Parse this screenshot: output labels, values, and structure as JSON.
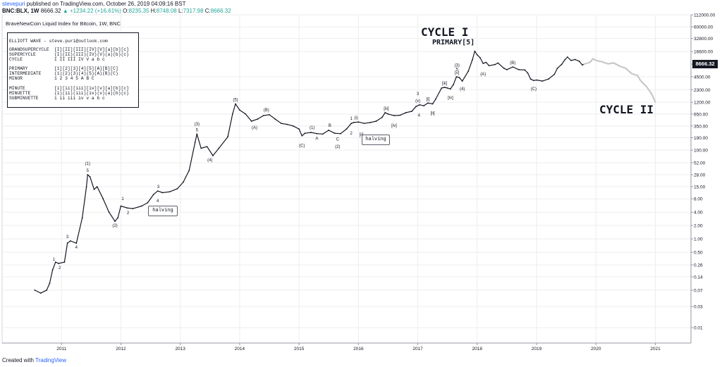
{
  "header": {
    "user": "stevepuri",
    "published": "published on TradingView.com, October 26, 2019 04:09:16 BST",
    "symbol": "BNC:BLX, 1W",
    "last": "8666.32",
    "change": "▲ +1234.22 (+16.61%)",
    "o_label": "O:",
    "o_value": "8235.35",
    "h_label": "H:",
    "h_value": "8748.08",
    "l_label": "L:",
    "l_value": "7317.98",
    "c_label": "C:",
    "c_value": "8666.32"
  },
  "footer": {
    "created_with": "Created with",
    "brand": "TradingView"
  },
  "colors": {
    "candle": "#131722",
    "projection": "#c8c8c8",
    "grid": "#eeeef0",
    "axis": "#9598a1",
    "accent": "#2962ff"
  },
  "legend": {
    "title": "ELLIOTT WAVE - steve.puri@outlook.com",
    "rows": [
      {
        "name": "GRANDSUPERCYCLE",
        "labels": "[I][II][III][IV][V][a][b][c]"
      },
      {
        "name": "SUPERCYCLE",
        "labels": "(I)(II)(III)(IV)(V)(a)(b)(c)"
      },
      {
        "name": "CYCLE",
        "labels": "I  II  III  IV  V  a  b  c"
      },
      {
        "name": "PRIMARY",
        "labels": "[1][2][3][4][5][A][B][C]"
      },
      {
        "name": "INTERMEDIATE",
        "labels": "(1)(2)(3)(4)(5)(A)(B)(C)"
      },
      {
        "name": "MINOR",
        "labels": "1  2  3  4  5  A  B  C"
      },
      {
        "name": "MINUTE",
        "labels": "[i][ii][iii][iv][v][a][b][c]"
      },
      {
        "name": "MINUETTE",
        "labels": "(i)(ii)(iii)(iv)(v)(a)(b)(c)"
      },
      {
        "name": "SUBMINUETTE",
        "labels": "i  ii  iii  iv  v  a  b  c"
      }
    ]
  },
  "annotations": {
    "cycle1": "CYCLE I",
    "primary5": "PRIMARY[5]",
    "cycle2": "CYCLE II",
    "halving1": "halving",
    "halving2": "halving"
  },
  "chart_data": {
    "type": "line",
    "title": "BraveNewCoin Liquid Index for Bitcoin, 1W, BNC",
    "y_scale": "log",
    "ylim": [
      0.0045,
      112000
    ],
    "xlim": [
      2010.0,
      2021.6
    ],
    "y_ticks": [
      "112000.00",
      "60000.00",
      "32800.00",
      "16600.00",
      "8666.32",
      "4500.00",
      "2300.00",
      "1200.00",
      "650.00",
      "350.00",
      "190.00",
      "100.00",
      "52.00",
      "28.00",
      "15.00",
      "8.00",
      "4.00",
      "2.00",
      "1.00",
      "0.50",
      "0.26",
      "0.14",
      "0.07",
      "0.03",
      "0.01"
    ],
    "y_tick_values": [
      112000,
      60000,
      32800,
      16600,
      8666.32,
      4500,
      2300,
      1200,
      650,
      350,
      190,
      100,
      52,
      28,
      15,
      8,
      4,
      2,
      1,
      0.5,
      0.26,
      0.14,
      0.07,
      0.03,
      0.01
    ],
    "x_ticks": [
      "2011",
      "2012",
      "2013",
      "2014",
      "2015",
      "2016",
      "2017",
      "2018",
      "2019",
      "2020",
      "2021"
    ],
    "x_tick_values": [
      2011,
      2012,
      2013,
      2014,
      2015,
      2016,
      2017,
      2018,
      2019,
      2020,
      2021
    ],
    "grid": true,
    "last_price": 8666.32,
    "series": [
      {
        "values": [
          [
            2010.55,
            0.07
          ],
          [
            2010.65,
            0.06
          ],
          [
            2010.75,
            0.07
          ],
          [
            2010.8,
            0.1
          ],
          [
            2010.85,
            0.2
          ],
          [
            2010.9,
            0.3
          ],
          [
            2010.95,
            0.28
          ],
          [
            2011.05,
            0.3
          ],
          [
            2011.1,
            0.8
          ],
          [
            2011.15,
            0.9
          ],
          [
            2011.25,
            0.8
          ],
          [
            2011.35,
            3.0
          ],
          [
            2011.42,
            15
          ],
          [
            2011.44,
            28
          ],
          [
            2011.48,
            25
          ],
          [
            2011.55,
            13
          ],
          [
            2011.6,
            15
          ],
          [
            2011.7,
            8
          ],
          [
            2011.8,
            4
          ],
          [
            2011.9,
            2.5
          ],
          [
            2011.95,
            3.0
          ],
          [
            2012.0,
            5.5
          ],
          [
            2012.1,
            5.0
          ],
          [
            2012.2,
            4.8
          ],
          [
            2012.35,
            5.5
          ],
          [
            2012.45,
            6.5
          ],
          [
            2012.55,
            10
          ],
          [
            2012.62,
            12
          ],
          [
            2012.7,
            11
          ],
          [
            2012.82,
            11.5
          ],
          [
            2012.95,
            13.5
          ],
          [
            2013.05,
            19
          ],
          [
            2013.15,
            35
          ],
          [
            2013.25,
            150
          ],
          [
            2013.28,
            230
          ],
          [
            2013.35,
            110
          ],
          [
            2013.45,
            120
          ],
          [
            2013.55,
            75
          ],
          [
            2013.65,
            110
          ],
          [
            2013.8,
            200
          ],
          [
            2013.88,
            650
          ],
          [
            2013.93,
            1100
          ],
          [
            2014.0,
            800
          ],
          [
            2014.1,
            650
          ],
          [
            2014.2,
            450
          ],
          [
            2014.3,
            500
          ],
          [
            2014.4,
            600
          ],
          [
            2014.5,
            630
          ],
          [
            2014.6,
            500
          ],
          [
            2014.7,
            400
          ],
          [
            2014.8,
            380
          ],
          [
            2014.9,
            350
          ],
          [
            2015.0,
            300
          ],
          [
            2015.05,
            210
          ],
          [
            2015.1,
            240
          ],
          [
            2015.2,
            250
          ],
          [
            2015.3,
            235
          ],
          [
            2015.4,
            230
          ],
          [
            2015.5,
            280
          ],
          [
            2015.6,
            240
          ],
          [
            2015.7,
            235
          ],
          [
            2015.8,
            300
          ],
          [
            2015.88,
            400
          ],
          [
            2015.92,
            420
          ],
          [
            2016.0,
            430
          ],
          [
            2016.1,
            400
          ],
          [
            2016.2,
            420
          ],
          [
            2016.3,
            450
          ],
          [
            2016.4,
            550
          ],
          [
            2016.45,
            700
          ],
          [
            2016.5,
            650
          ],
          [
            2016.6,
            600
          ],
          [
            2016.7,
            610
          ],
          [
            2016.8,
            700
          ],
          [
            2016.9,
            750
          ],
          [
            2016.97,
            960
          ],
          [
            2017.03,
            1050
          ],
          [
            2017.1,
            1000
          ],
          [
            2017.17,
            1150
          ],
          [
            2017.25,
            1100
          ],
          [
            2017.3,
            1400
          ],
          [
            2017.4,
            2500
          ],
          [
            2017.45,
            2600
          ],
          [
            2017.5,
            2500
          ],
          [
            2017.55,
            2400
          ],
          [
            2017.6,
            3000
          ],
          [
            2017.65,
            4500
          ],
          [
            2017.7,
            4300
          ],
          [
            2017.75,
            3600
          ],
          [
            2017.85,
            6000
          ],
          [
            2017.92,
            11000
          ],
          [
            2017.96,
            17000
          ],
          [
            2018.0,
            14000
          ],
          [
            2018.05,
            12000
          ],
          [
            2018.1,
            9000
          ],
          [
            2018.15,
            9500
          ],
          [
            2018.2,
            8000
          ],
          [
            2018.3,
            8500
          ],
          [
            2018.35,
            9200
          ],
          [
            2018.45,
            7000
          ],
          [
            2018.5,
            6500
          ],
          [
            2018.6,
            7500
          ],
          [
            2018.7,
            6500
          ],
          [
            2018.8,
            6400
          ],
          [
            2018.85,
            5500
          ],
          [
            2018.9,
            4000
          ],
          [
            2018.95,
            3700
          ],
          [
            2019.0,
            3800
          ],
          [
            2019.1,
            3600
          ],
          [
            2019.2,
            4000
          ],
          [
            2019.3,
            5100
          ],
          [
            2019.35,
            7000
          ],
          [
            2019.42,
            8500
          ],
          [
            2019.48,
            11000
          ],
          [
            2019.52,
            12500
          ],
          [
            2019.58,
            10500
          ],
          [
            2019.65,
            11000
          ],
          [
            2019.72,
            10000
          ],
          [
            2019.77,
            8300
          ],
          [
            2019.8,
            8666.32
          ]
        ]
      },
      {
        "values": [
          [
            2019.8,
            8666.32
          ],
          [
            2019.9,
            9500
          ],
          [
            2019.95,
            11500
          ],
          [
            2020.0,
            10500
          ],
          [
            2020.1,
            9800
          ],
          [
            2020.2,
            8800
          ],
          [
            2020.3,
            9200
          ],
          [
            2020.4,
            7800
          ],
          [
            2020.5,
            7000
          ],
          [
            2020.6,
            5300
          ],
          [
            2020.7,
            4800
          ],
          [
            2020.75,
            3700
          ],
          [
            2020.85,
            2700
          ],
          [
            2020.9,
            2200
          ],
          [
            2020.95,
            1700
          ],
          [
            2021.0,
            1200
          ]
        ]
      }
    ],
    "wave_labels": [
      {
        "text": "1",
        "x": 2010.87,
        "y": 0.28,
        "pos": "above"
      },
      {
        "text": "2",
        "x": 2010.97,
        "y": 0.28,
        "pos": "below"
      },
      {
        "text": "3",
        "x": 2011.1,
        "y": 0.9,
        "pos": "above"
      },
      {
        "text": "4",
        "x": 2011.25,
        "y": 0.8,
        "pos": "below"
      },
      {
        "text": "(1)",
        "x": 2011.44,
        "y": 40,
        "pos": "above"
      },
      {
        "text": "5",
        "x": 2011.44,
        "y": 28,
        "pos": "above"
      },
      {
        "text": "(2)",
        "x": 2011.9,
        "y": 2.5,
        "pos": "below"
      },
      {
        "text": "1",
        "x": 2012.03,
        "y": 6.5,
        "pos": "above"
      },
      {
        "text": "2",
        "x": 2012.12,
        "y": 4.8,
        "pos": "below"
      },
      {
        "text": "3",
        "x": 2012.63,
        "y": 12,
        "pos": "above"
      },
      {
        "text": "4",
        "x": 2012.62,
        "y": 9,
        "pos": "below"
      },
      {
        "text": "(3)",
        "x": 2013.28,
        "y": 310,
        "pos": "above"
      },
      {
        "text": "5",
        "x": 2013.28,
        "y": 230,
        "pos": "above"
      },
      {
        "text": "(4)",
        "x": 2013.5,
        "y": 75,
        "pos": "below"
      },
      {
        "text": "(5)",
        "x": 2013.93,
        "y": 1100,
        "pos": "above"
      },
      {
        "text": "(A)",
        "x": 2014.25,
        "y": 400,
        "pos": "below"
      },
      {
        "text": "(B)",
        "x": 2014.45,
        "y": 650,
        "pos": "above"
      },
      {
        "text": "(C)",
        "x": 2015.05,
        "y": 160,
        "pos": "below"
      },
      {
        "text": "(1)",
        "x": 2015.22,
        "y": 260,
        "pos": "above"
      },
      {
        "text": "A",
        "x": 2015.3,
        "y": 230,
        "pos": "below"
      },
      {
        "text": "B",
        "x": 2015.52,
        "y": 290,
        "pos": "above"
      },
      {
        "text": "C",
        "x": 2015.65,
        "y": 220,
        "pos": "below"
      },
      {
        "text": "(2)",
        "x": 2015.65,
        "y": 150,
        "pos": "below"
      },
      {
        "text": "1",
        "x": 2015.88,
        "y": 420,
        "pos": "above"
      },
      {
        "text": "2",
        "x": 2015.88,
        "y": 300,
        "pos": "below"
      },
      {
        "text": "(i)",
        "x": 2015.96,
        "y": 430,
        "pos": "above"
      },
      {
        "text": "[ii]",
        "x": 2016.05,
        "y": 280,
        "pos": "below"
      },
      {
        "text": "[iii]",
        "x": 2016.47,
        "y": 700,
        "pos": "above"
      },
      {
        "text": "[iv]",
        "x": 2016.6,
        "y": 450,
        "pos": "below"
      },
      {
        "text": "(v)",
        "x": 2017.0,
        "y": 1050,
        "pos": "above"
      },
      {
        "text": "3",
        "x": 2017.0,
        "y": 1500,
        "pos": "above"
      },
      {
        "text": "4",
        "x": 2017.02,
        "y": 760,
        "pos": "below"
      },
      {
        "text": "[i]",
        "x": 2017.17,
        "y": 1150,
        "pos": "above"
      },
      {
        "text": "[ii]",
        "x": 2017.25,
        "y": 850,
        "pos": "below"
      },
      {
        "text": "[iii]",
        "x": 2017.45,
        "y": 2600,
        "pos": "above"
      },
      {
        "text": "[iv]",
        "x": 2017.55,
        "y": 1900,
        "pos": "below"
      },
      {
        "text": "(3)",
        "x": 2017.66,
        "y": 6600,
        "pos": "above"
      },
      {
        "text": "5",
        "x": 2017.66,
        "y": 5300,
        "pos": "above"
      },
      {
        "text": "[v]",
        "x": 2017.66,
        "y": 4500,
        "pos": "above"
      },
      {
        "text": "(4)",
        "x": 2017.75,
        "y": 3000,
        "pos": "below"
      },
      {
        "text": "(A)",
        "x": 2018.1,
        "y": 6500,
        "pos": "below"
      },
      {
        "text": "(B)",
        "x": 2018.6,
        "y": 7500,
        "pos": "above"
      },
      {
        "text": "(C)",
        "x": 2018.95,
        "y": 3000,
        "pos": "below"
      }
    ]
  }
}
